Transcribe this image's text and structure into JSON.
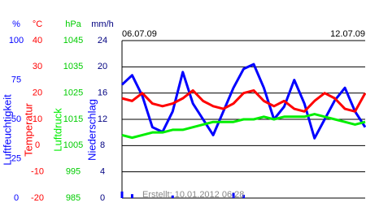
{
  "chart_data": {
    "type": "line",
    "categories": [
      "06.07.09",
      null,
      null,
      null,
      null,
      null,
      null,
      null,
      null,
      null,
      null,
      null,
      null,
      null,
      null,
      null,
      null,
      null,
      null,
      null,
      null,
      null,
      null,
      null,
      "12.07.09"
    ],
    "axes": [
      {
        "unit": "%",
        "color": "#0000ff",
        "lim": [
          0,
          100
        ],
        "ticks": [
          0,
          25,
          50,
          75,
          100
        ]
      },
      {
        "unit": "°C",
        "color": "#ff0000",
        "lim": [
          -20,
          40
        ],
        "ticks": [
          -20,
          -10,
          0,
          10,
          20,
          30,
          40
        ]
      },
      {
        "unit": "hPa",
        "color": "#00cc00",
        "lim": [
          985,
          1045
        ],
        "ticks": [
          985,
          995,
          1005,
          1015,
          1025,
          1035,
          1045
        ]
      },
      {
        "unit": "mm/h",
        "color": "#000080",
        "lim": [
          0,
          24
        ],
        "ticks": [
          0,
          4,
          8,
          12,
          16,
          20,
          24
        ]
      }
    ],
    "series": [
      {
        "name": "Luftfeuchtigkeit",
        "color": "#0000ff",
        "axis": 0,
        "values": [
          72,
          78,
          65,
          45,
          42,
          55,
          80,
          60,
          50,
          40,
          55,
          70,
          82,
          85,
          70,
          50,
          58,
          75,
          60,
          38,
          50,
          62,
          70,
          55,
          45
        ]
      },
      {
        "name": "Temperatur",
        "color": "#ff0000",
        "axis": 1,
        "values": [
          18,
          17,
          20,
          16,
          15,
          16,
          18,
          21,
          17,
          15,
          14,
          16,
          20,
          21,
          17,
          15,
          17,
          14,
          13,
          17,
          20,
          18,
          14,
          13,
          20
        ]
      },
      {
        "name": "Luftdruck",
        "color": "#00ee00",
        "axis": 2,
        "values": [
          1009,
          1008,
          1009,
          1010,
          1010,
          1011,
          1011,
          1012,
          1013,
          1014,
          1014,
          1014,
          1015,
          1015,
          1016,
          1015,
          1016,
          1016,
          1016,
          1017,
          1016,
          1015,
          1014,
          1013,
          1014
        ]
      },
      {
        "name": "Niederschlag",
        "color": "#0000ff",
        "axis": 3,
        "type": "bar",
        "values": [
          1,
          0.6,
          0,
          0,
          0,
          0.4,
          0,
          0,
          0,
          0,
          0,
          0.8,
          0.5,
          0,
          0,
          0,
          0,
          0,
          0,
          0,
          0,
          0,
          0,
          0,
          0
        ]
      }
    ],
    "grid": true,
    "footer": "Erstellt: 10.01.2012 06:28"
  }
}
